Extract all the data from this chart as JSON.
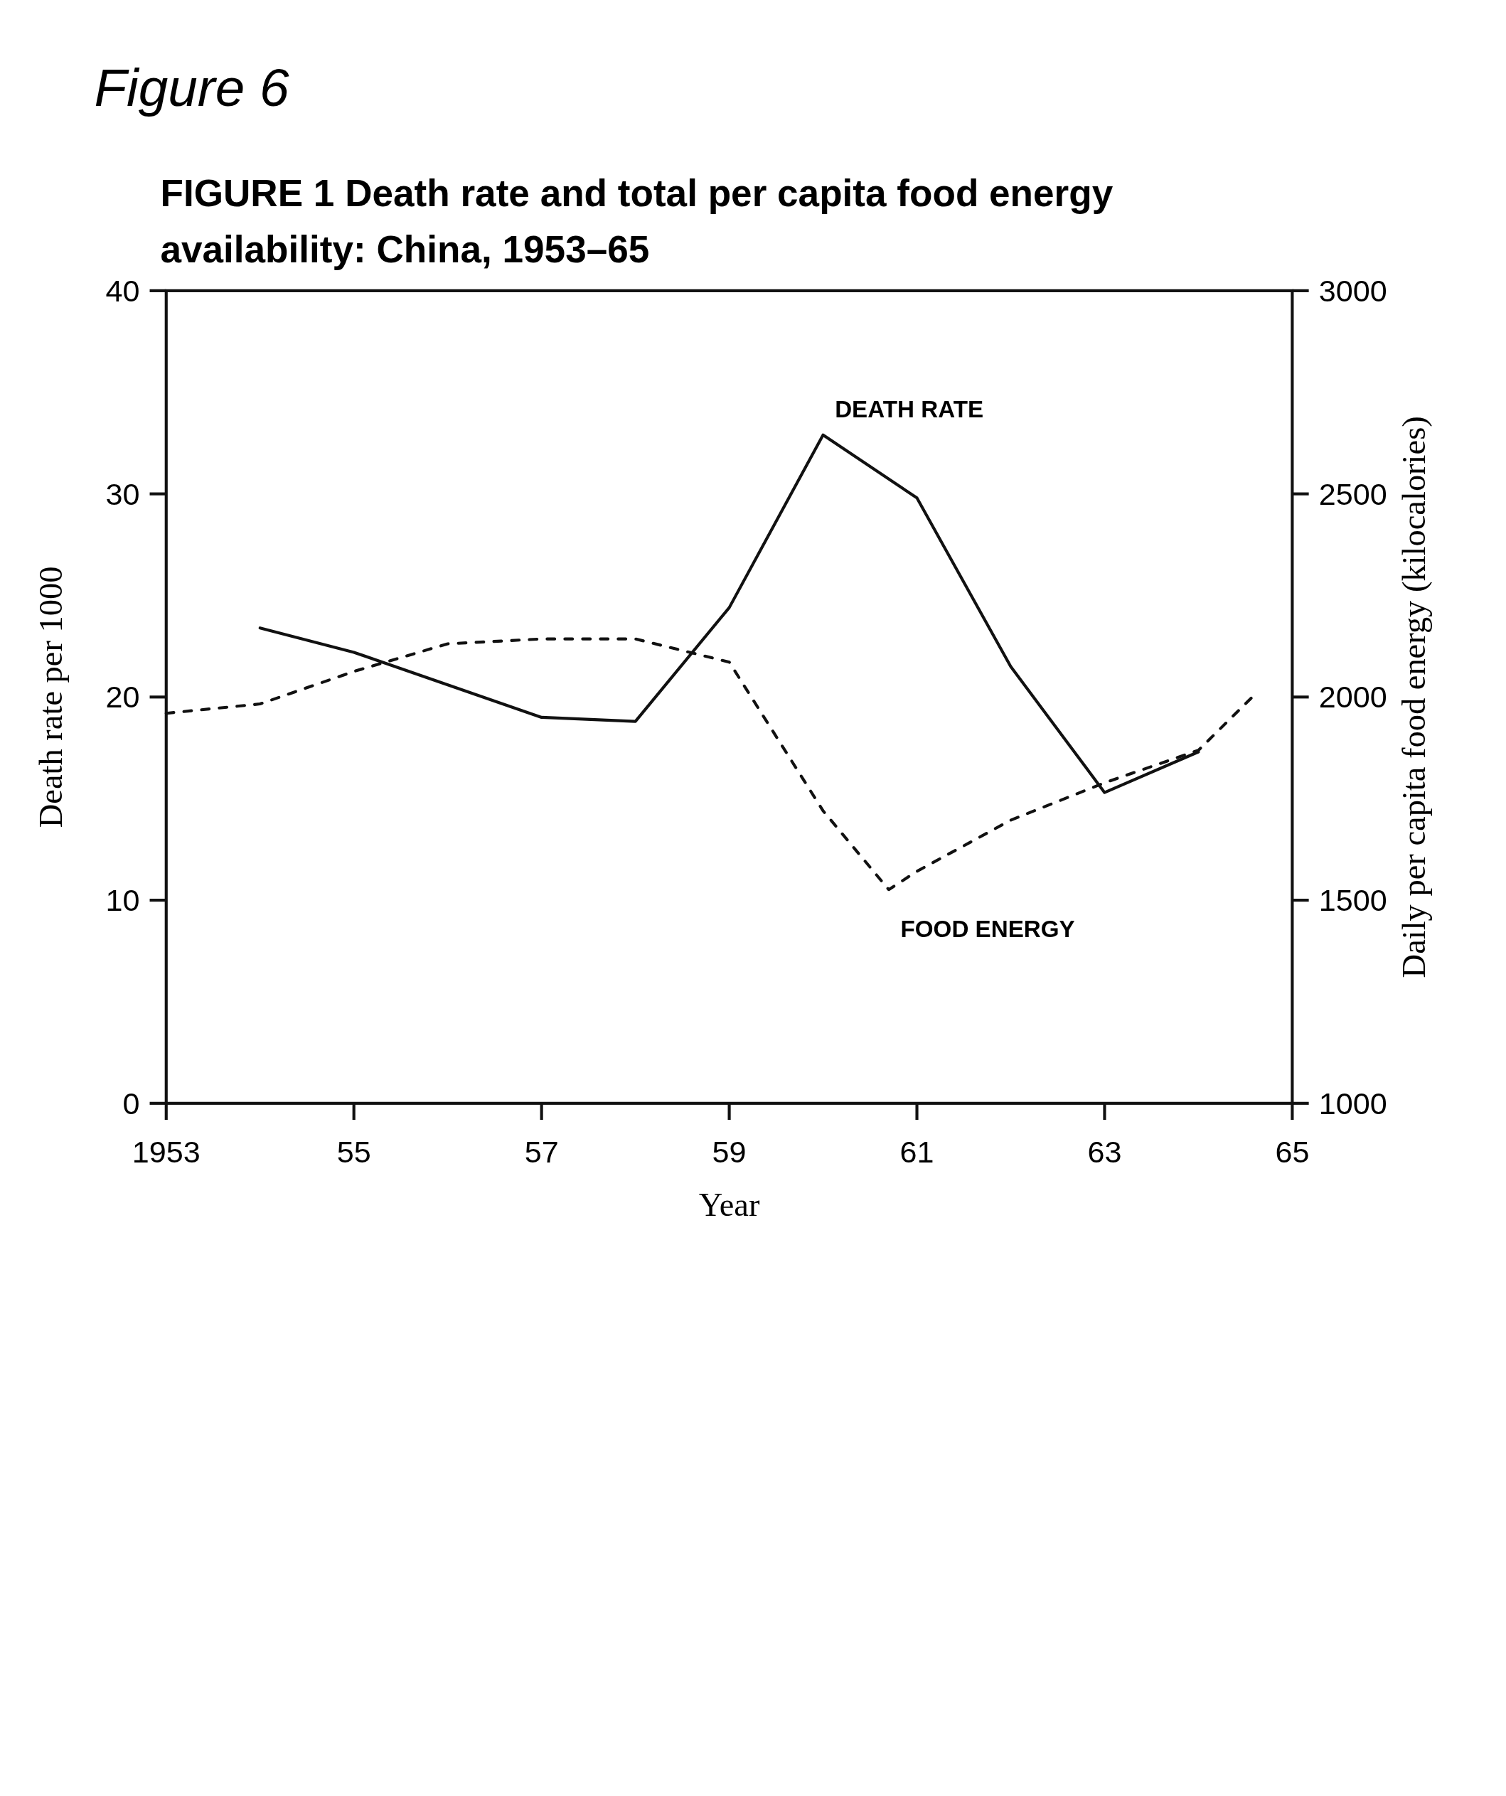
{
  "chart_data": {
    "type": "line",
    "title": "FIGURE 1   Death rate and total per capita food energy availability: China, 1953–65",
    "xlabel": "Year",
    "ylabel": "Death rate per 1000",
    "y2label": "Daily per capita food energy (kilocalories)",
    "annotations": [
      "Figure 6"
    ],
    "xlim": [
      1953,
      1965
    ],
    "xticks": [
      1953,
      {
        "value": 1955,
        "label": "55"
      },
      {
        "value": 1957,
        "label": "57"
      },
      {
        "value": 1959,
        "label": "59"
      },
      {
        "value": 1961,
        "label": "61"
      },
      {
        "value": 1963,
        "label": "63"
      },
      {
        "value": 1965,
        "label": "65"
      }
    ],
    "ylim": [
      0,
      40
    ],
    "yticks": [
      0,
      10,
      20,
      30,
      40
    ],
    "y2lim": [
      1000,
      3000
    ],
    "y2ticks": [
      1000,
      1500,
      2000,
      2500,
      3000
    ],
    "grid": false,
    "series": [
      {
        "name": "DEATH RATE",
        "color": "#111111",
        "line_style": "solid",
        "x": [
          1954,
          1955,
          1957,
          1958,
          1959,
          1960,
          1961,
          1962,
          1963,
          1964
        ],
        "values": [
          23.4,
          22.2,
          19,
          18.8,
          24.4,
          32.9,
          29.8,
          21.5,
          15.3,
          17.3
        ]
      },
      {
        "name": "FOOD ENERGY",
        "color": "#111111",
        "line_style": "dashed",
        "axis": "y2",
        "x": [
          1953,
          1954,
          1955,
          1956,
          1957,
          1958,
          1959,
          1960,
          1960.7,
          1961,
          1962,
          1963,
          1964,
          1964.6
        ],
        "values": [
          1960,
          1983,
          2063,
          2131,
          2143,
          2143,
          2086,
          1720,
          1526,
          1571,
          1697,
          1789,
          1869,
          2006
        ]
      }
    ]
  }
}
